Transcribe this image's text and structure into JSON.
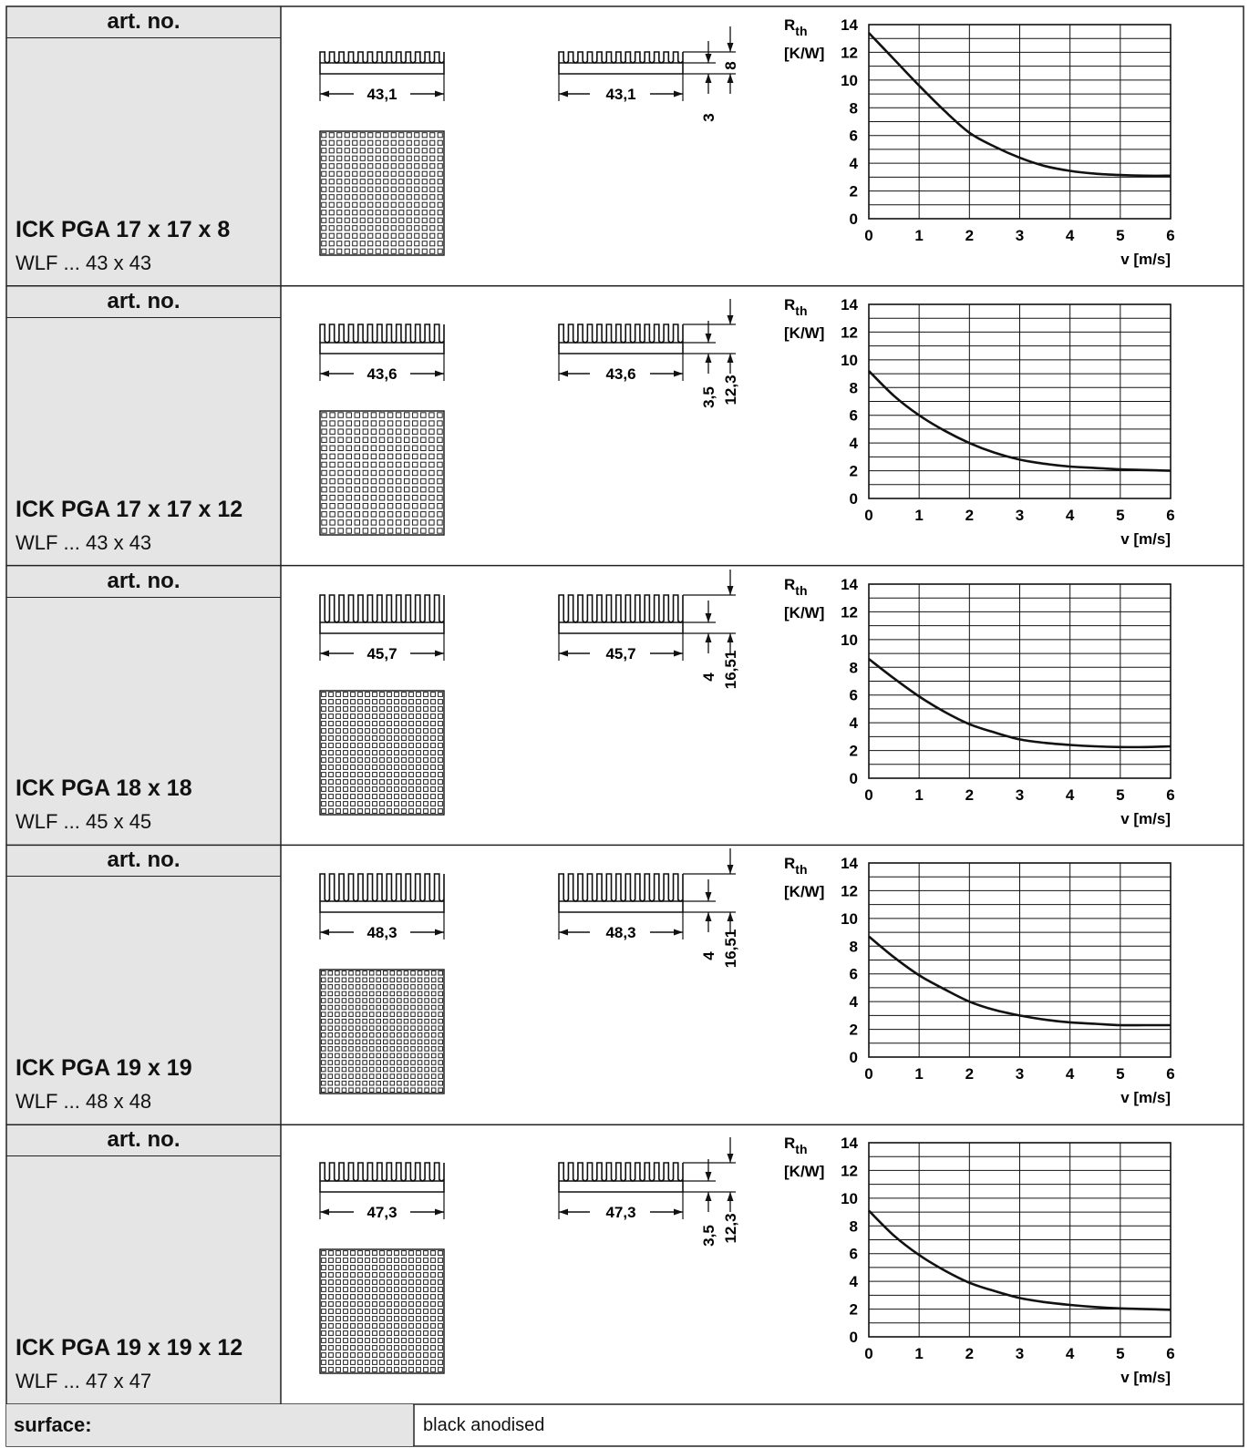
{
  "rows": [
    {
      "art_no_label": "art. no.",
      "name": "ICK PGA 17 x 17 x 8",
      "sub": "WLF ... 43 x 43",
      "dims": {
        "width": "43,1",
        "fin_height": "8",
        "base": "3"
      },
      "chart_data": {
        "type": "line",
        "ylabel_main": "R",
        "ylabel_sub": "th",
        "yunit": "[K/W]",
        "xlabel": "v [m/s]",
        "x_ticks": [
          "0",
          "1",
          "2",
          "3",
          "4",
          "5",
          "6"
        ],
        "y_ticks": [
          "0",
          "2",
          "4",
          "6",
          "8",
          "10",
          "12",
          "14"
        ],
        "xlim": [
          0,
          6
        ],
        "ylim": [
          0,
          14
        ],
        "grid": true,
        "series": [
          {
            "x": [
              0,
              0.5,
              1,
              1.5,
              2,
              2.5,
              3,
              3.5,
              4,
              4.5,
              5,
              5.5,
              6
            ],
            "y": [
              13.4,
              11.5,
              9.6,
              7.8,
              6.2,
              5.2,
              4.4,
              3.8,
              3.45,
              3.25,
              3.15,
              3.1,
              3.1
            ]
          }
        ]
      }
    },
    {
      "art_no_label": "art. no.",
      "name": "ICK PGA 17 x 17 x 12",
      "sub": "WLF ... 43 x 43",
      "dims": {
        "width": "43,6",
        "base": "3,5",
        "total": "12,3"
      },
      "chart_data": {
        "type": "line",
        "ylabel_main": "R",
        "ylabel_sub": "th",
        "yunit": "[K/W]",
        "xlabel": "v [m/s]",
        "x_ticks": [
          "0",
          "1",
          "2",
          "3",
          "4",
          "5",
          "6"
        ],
        "y_ticks": [
          "0",
          "2",
          "4",
          "6",
          "8",
          "10",
          "12",
          "14"
        ],
        "xlim": [
          0,
          6
        ],
        "ylim": [
          0,
          14
        ],
        "grid": true,
        "series": [
          {
            "x": [
              0,
              0.5,
              1,
              1.5,
              2,
              2.5,
              3,
              3.5,
              4,
              4.5,
              5,
              5.5,
              6
            ],
            "y": [
              9.2,
              7.4,
              6.0,
              4.9,
              4.0,
              3.3,
              2.8,
              2.5,
              2.3,
              2.2,
              2.1,
              2.05,
              2.0
            ]
          }
        ]
      }
    },
    {
      "art_no_label": "art. no.",
      "name": "ICK PGA 18 x 18",
      "sub": "WLF ... 45 x 45",
      "dims": {
        "width": "45,7",
        "base": "4",
        "total": "16,51"
      },
      "chart_data": {
        "type": "line",
        "ylabel_main": "R",
        "ylabel_sub": "th",
        "yunit": "[K/W]",
        "xlabel": "v [m/s]",
        "x_ticks": [
          "0",
          "1",
          "2",
          "3",
          "4",
          "5",
          "6"
        ],
        "y_ticks": [
          "0",
          "2",
          "4",
          "6",
          "8",
          "10",
          "12",
          "14"
        ],
        "xlim": [
          0,
          6
        ],
        "ylim": [
          0,
          14
        ],
        "grid": true,
        "series": [
          {
            "x": [
              0,
              0.5,
              1,
              1.5,
              2,
              2.5,
              3,
              3.5,
              4,
              4.5,
              5,
              5.5,
              6
            ],
            "y": [
              8.6,
              7.2,
              5.9,
              4.8,
              3.9,
              3.3,
              2.8,
              2.55,
              2.4,
              2.3,
              2.25,
              2.25,
              2.3
            ]
          }
        ]
      }
    },
    {
      "art_no_label": "art. no.",
      "name": "ICK PGA 19 x 19",
      "sub": "WLF ... 48 x 48",
      "dims": {
        "width": "48,3",
        "base": "4",
        "total": "16,51"
      },
      "chart_data": {
        "type": "line",
        "ylabel_main": "R",
        "ylabel_sub": "th",
        "yunit": "[K/W]",
        "xlabel": "v [m/s]",
        "x_ticks": [
          "0",
          "1",
          "2",
          "3",
          "4",
          "5",
          "6"
        ],
        "y_ticks": [
          "0",
          "2",
          "4",
          "6",
          "8",
          "10",
          "12",
          "14"
        ],
        "xlim": [
          0,
          6
        ],
        "ylim": [
          0,
          14
        ],
        "grid": true,
        "series": [
          {
            "x": [
              0,
              0.5,
              1,
              1.5,
              2,
              2.5,
              3,
              3.5,
              4,
              4.5,
              5,
              5.5,
              6
            ],
            "y": [
              8.7,
              7.2,
              5.9,
              4.9,
              4.0,
              3.4,
              3.0,
              2.7,
              2.5,
              2.4,
              2.3,
              2.3,
              2.3
            ]
          }
        ]
      }
    },
    {
      "art_no_label": "art. no.",
      "name": "ICK PGA 19 x 19 x 12",
      "sub": "WLF ... 47 x 47",
      "dims": {
        "width": "47,3",
        "base": "3,5",
        "total": "12,3"
      },
      "chart_data": {
        "type": "line",
        "ylabel_main": "R",
        "ylabel_sub": "th",
        "yunit": "[K/W]",
        "xlabel": "v [m/s]",
        "x_ticks": [
          "0",
          "1",
          "2",
          "3",
          "4",
          "5",
          "6"
        ],
        "y_ticks": [
          "0",
          "2",
          "4",
          "6",
          "8",
          "10",
          "12",
          "14"
        ],
        "xlim": [
          0,
          6
        ],
        "ylim": [
          0,
          14
        ],
        "grid": true,
        "series": [
          {
            "x": [
              0,
              0.5,
              1,
              1.5,
              2,
              2.5,
              3,
              3.5,
              4,
              4.5,
              5,
              5.5,
              6
            ],
            "y": [
              9.1,
              7.3,
              5.9,
              4.8,
              3.9,
              3.3,
              2.8,
              2.5,
              2.3,
              2.15,
              2.05,
              2.0,
              1.95
            ]
          }
        ]
      }
    }
  ],
  "footer": {
    "label": "surface:",
    "value": "black anodised"
  }
}
